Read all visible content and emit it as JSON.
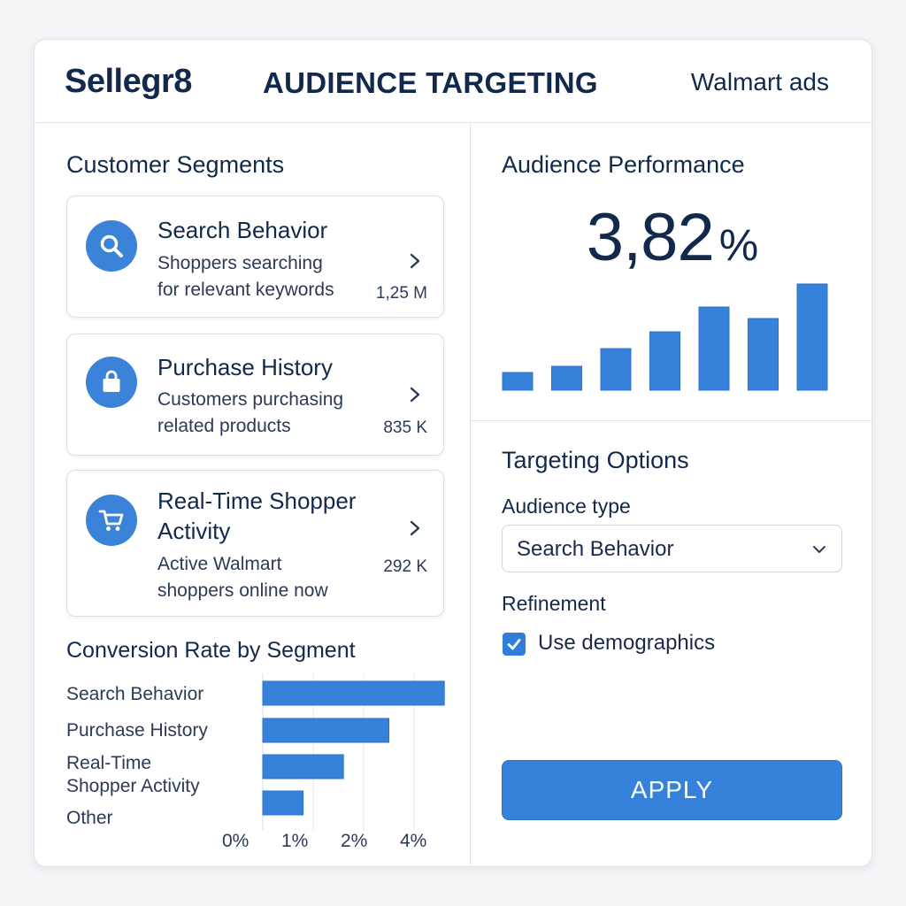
{
  "header": {
    "logo": "Sellegr8",
    "title": "AUDIENCE TARGETING",
    "right": "Walmart ads"
  },
  "segments": {
    "title": "Customer Segments",
    "items": [
      {
        "title": "Search Behavior",
        "desc1": "Shoppers searching",
        "desc2": "for relevant keywords",
        "count": "1,25 M",
        "icon": "search-icon"
      },
      {
        "title": "Purchase History",
        "desc1": "Customers purchasing",
        "desc2": "related products",
        "count": "835 K",
        "icon": "shopping-bag-icon"
      },
      {
        "title1": "Real-Time Shopper",
        "title2": "Activity",
        "desc1": "Active Walmart",
        "desc2": "shoppers online now",
        "count": "292 K",
        "icon": "shopping-cart-icon"
      }
    ]
  },
  "conversion": {
    "title": "Conversion Rate by Segment",
    "labels": [
      "Search Behavior",
      "Purchase History",
      "Real-Time",
      "Shopper Activity",
      "Other"
    ],
    "ticks": [
      "0%",
      "1%",
      "2%",
      "4%"
    ]
  },
  "performance": {
    "title": "Audience Performance",
    "metric_value": "3,82",
    "metric_unit": "%"
  },
  "targeting": {
    "title": "Targeting Options",
    "audience_type_label": "Audience type",
    "audience_type_value": "Search Behavior",
    "refinement_label": "Refinement",
    "checkbox_label": "Use demographics",
    "checkbox_checked": true,
    "apply_label": "APPLY"
  },
  "colors": {
    "accent": "#3682db",
    "text": "#13294b"
  },
  "chart_data": [
    {
      "type": "bar",
      "orientation": "horizontal",
      "categories": [
        "Search Behavior",
        "Purchase History",
        "Real-Time Shopper Activity",
        "Other"
      ],
      "values": [
        3.6,
        2.5,
        1.6,
        0.8
      ],
      "title": "Conversion Rate by Segment",
      "xlabel": "",
      "ylabel": "",
      "xlim": [
        0,
        4
      ],
      "x_ticks": [
        "0%",
        "1%",
        "2%",
        "4%"
      ],
      "grid": true
    },
    {
      "type": "bar",
      "orientation": "vertical",
      "categories": [
        "",
        "",
        "",
        "",
        "",
        "",
        ""
      ],
      "values": [
        2,
        2.7,
        4.7,
        6.6,
        9.4,
        8.1,
        12
      ],
      "title": "",
      "xlabel": "",
      "ylabel": "",
      "ylim": [
        0,
        12
      ],
      "grid": false
    }
  ]
}
